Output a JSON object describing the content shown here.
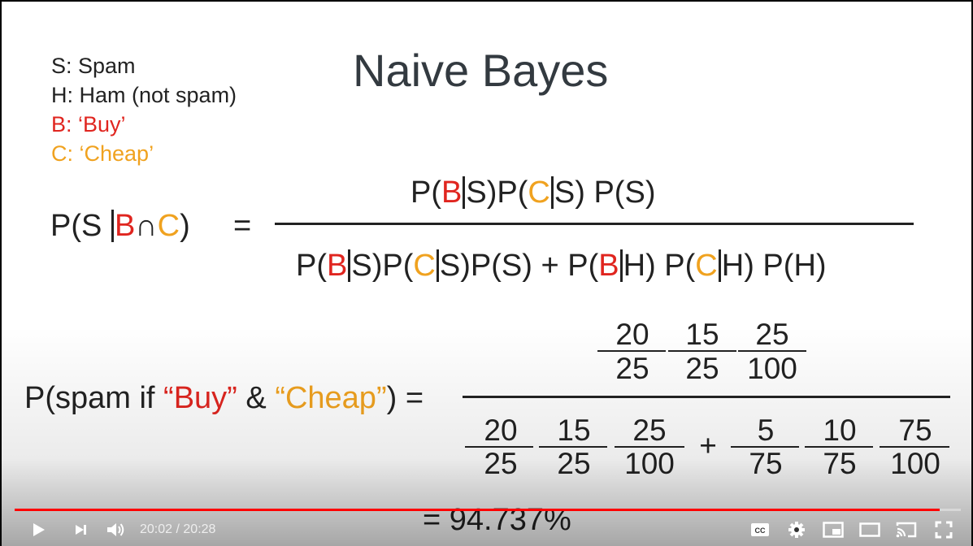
{
  "slide": {
    "title": "Naive Bayes",
    "legend": [
      {
        "text": "S: Spam",
        "color": "#222222"
      },
      {
        "text": "H: Ham (not spam)",
        "color": "#222222"
      },
      {
        "text": "B: ‘Buy’",
        "color": "#e0251f"
      },
      {
        "text": "C: ‘Cheap’",
        "color": "#f0a21f"
      }
    ],
    "formula": {
      "P": "P",
      "lparen": "(",
      "rparen": ")",
      "S": "S",
      "B": "B",
      "C": "C",
      "H": "H",
      "cap": "∩",
      "equals": "=",
      "plus": "+"
    },
    "numeric": {
      "lhs_prefix": "P(spam if ",
      "buy": "“Buy”",
      "amp": " & ",
      "cheap": "“Cheap”",
      "lhs_suffix": ") =",
      "num_top": [
        "20",
        "15",
        "25"
      ],
      "num_bottom": [
        "25",
        "25",
        "100"
      ],
      "den_a_top": [
        "20",
        "15",
        "25"
      ],
      "den_a_bottom": [
        "25",
        "25",
        "100"
      ],
      "plus": "+",
      "den_b_top": [
        "5",
        "10",
        "75"
      ],
      "den_b_bottom": [
        "75",
        "75",
        "100"
      ],
      "result": "= 94.737%"
    }
  },
  "player": {
    "current_time": "20:02",
    "separator": " / ",
    "duration": "20:28",
    "progress": 0.978,
    "progress_color": "#ff0000",
    "icons": [
      "play-icon",
      "next-icon",
      "volume-icon",
      "subtitles-icon",
      "settings-icon",
      "miniplayer-icon",
      "theater-icon",
      "cast-icon",
      "fullscreen-icon"
    ]
  }
}
